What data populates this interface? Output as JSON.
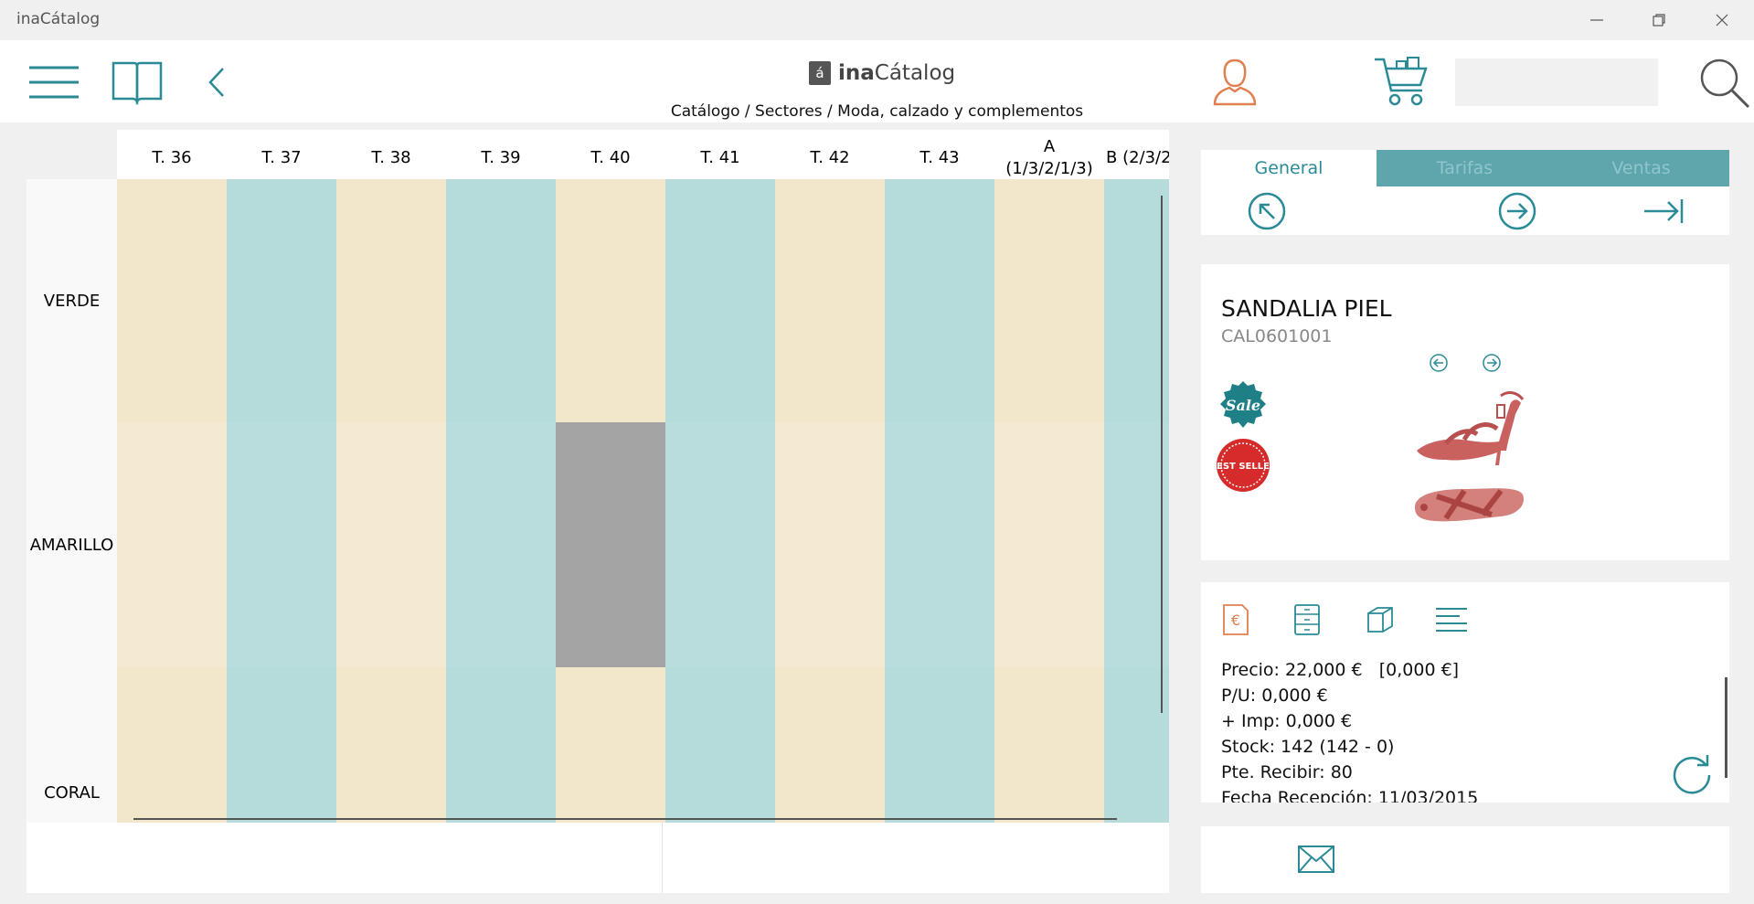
{
  "window": {
    "title": "inaCátalog"
  },
  "header": {
    "logo_mark": "á",
    "logo_bold": "ina",
    "logo_rest": "Cátalog",
    "breadcrumb": "Catálogo / Sectores / Moda, calzado y complementos",
    "search_value": ""
  },
  "grid": {
    "columns": [
      "T. 36",
      "T. 37",
      "T. 38",
      "T. 39",
      "T. 40",
      "T. 41",
      "T. 42",
      "T. 43",
      "A (1/3/2/1/3)",
      "B (2/3/2"
    ],
    "rows": [
      "VERDE",
      "AMARILLO",
      "CORAL"
    ]
  },
  "tabs": [
    {
      "label": "General",
      "active": true
    },
    {
      "label": "Tarifas",
      "active": false
    },
    {
      "label": "Ventas",
      "active": false
    }
  ],
  "product": {
    "name": "SANDALIA PIEL",
    "code": "CAL0601001",
    "badges": [
      "Sale",
      "BEST SELLER"
    ]
  },
  "details": [
    "Precio: 22,000 €   [0,000 €]",
    "P/U: 0,000 €",
    "+ Imp: 0,000 €",
    "Stock: 142 (142 - 0)",
    "Pte. Recibir: 80",
    "Fecha Recepción: 11/03/2015"
  ],
  "colors": {
    "accent": "#2a8a96",
    "user_icon": "#e08050",
    "tab_inactive_bg": "#5ea6ac",
    "beige": "#f2e6cb",
    "teal": "#b5dbda",
    "gray": "#a4a4a4"
  }
}
